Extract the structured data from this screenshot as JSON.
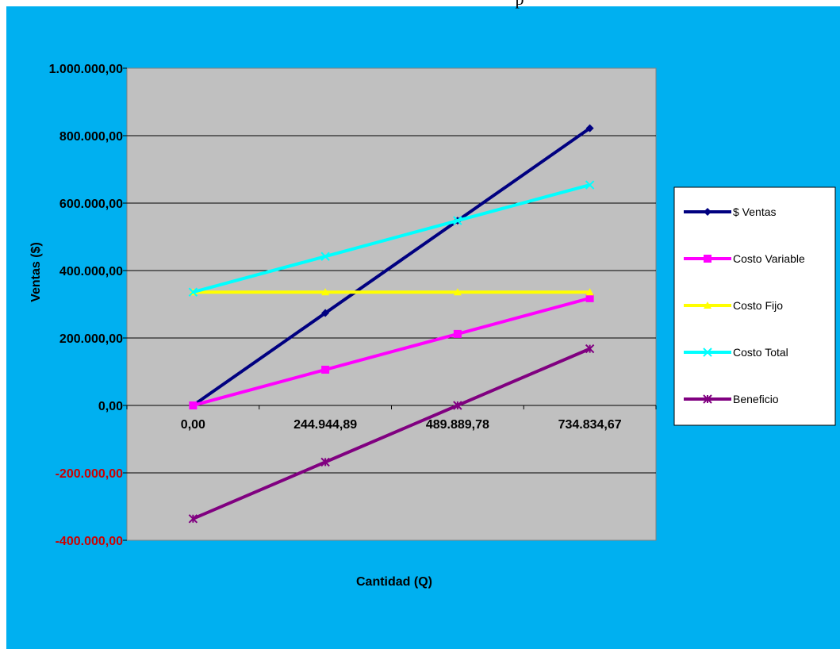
{
  "chart_data": {
    "type": "line",
    "title": "p",
    "xlabel": "Cantidad (Q)",
    "ylabel": "Ventas ($)",
    "categories": [
      "0,00",
      "244.944,89",
      "489.889,78",
      "734.834,67"
    ],
    "y_ticks": [
      {
        "value": 1000000,
        "label": "1.000.000,00"
      },
      {
        "value": 800000,
        "label": "800.000,00"
      },
      {
        "value": 600000,
        "label": "600.000,00"
      },
      {
        "value": 400000,
        "label": "400.000,00"
      },
      {
        "value": 200000,
        "label": "200.000,00"
      },
      {
        "value": 0,
        "label": "0,00"
      },
      {
        "value": -200000,
        "label": "-200.000,00"
      },
      {
        "value": -400000,
        "label": "-400.000,00"
      }
    ],
    "ylim": [
      -400000,
      1000000
    ],
    "grid": true,
    "legend_position": "right",
    "series": [
      {
        "name": "$ Ventas",
        "color": "#000080",
        "marker": "diamond",
        "values": [
          0,
          274000,
          548000,
          822000
        ]
      },
      {
        "name": "Costo Variable",
        "color": "#FF00FF",
        "marker": "square",
        "values": [
          0,
          106000,
          212000,
          318000
        ]
      },
      {
        "name": "Costo Fijo",
        "color": "#FFFF00",
        "marker": "triangle",
        "values": [
          336000,
          336000,
          336000,
          336000
        ]
      },
      {
        "name": "Costo Total",
        "color": "#00FFFF",
        "marker": "x",
        "values": [
          336000,
          442000,
          548000,
          654000
        ]
      },
      {
        "name": "Beneficio",
        "color": "#800080",
        "marker": "star",
        "values": [
          -336000,
          -168000,
          0,
          168000
        ]
      }
    ]
  },
  "colors": {
    "background": "#00B0F0",
    "plot_area": "#C0C0C0",
    "negative_tick": "#CC0000",
    "positive_tick": "#000000"
  }
}
